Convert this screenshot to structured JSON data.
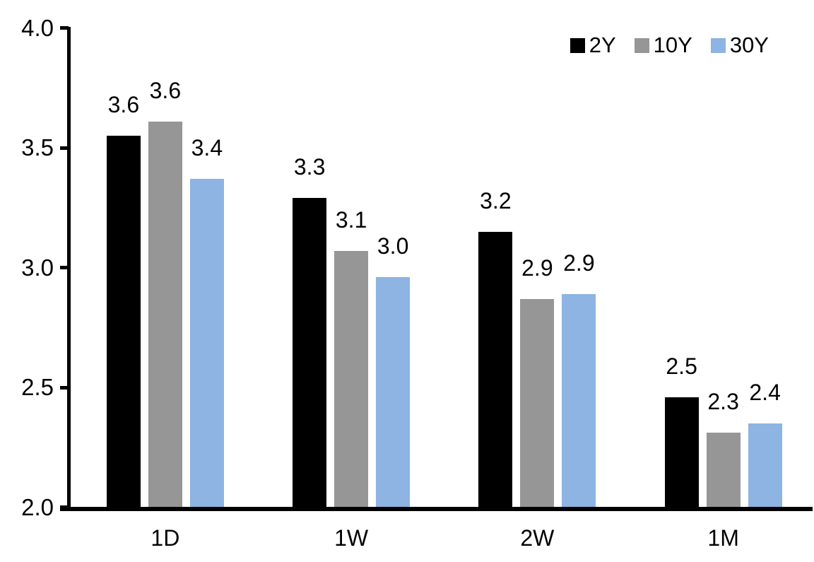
{
  "chart_data": {
    "type": "bar",
    "title": "",
    "xlabel": "",
    "ylabel": "",
    "categories": [
      "1D",
      "1W",
      "2W",
      "1M"
    ],
    "series": [
      {
        "name": "2Y",
        "color": "#000000",
        "values": [
          3.55,
          3.29,
          3.15,
          2.46
        ],
        "data_labels": [
          "3.6",
          "3.3",
          "3.2",
          "2.5"
        ]
      },
      {
        "name": "10Y",
        "color": "#969696",
        "values": [
          3.61,
          3.07,
          2.87,
          2.31
        ],
        "data_labels": [
          "3.6",
          "3.1",
          "2.9",
          "2.3"
        ]
      },
      {
        "name": "30Y",
        "color": "#8DB4E2",
        "values": [
          3.37,
          2.96,
          2.89,
          2.35
        ],
        "data_labels": [
          "3.4",
          "3.0",
          "2.9",
          "2.4"
        ]
      }
    ],
    "ylim": [
      2.0,
      4.0
    ],
    "ytick_values": [
      2.0,
      2.5,
      3.0,
      3.5,
      4.0
    ],
    "ytick_labels": [
      "2.0",
      "2.5",
      "3.0",
      "3.5",
      "4.0"
    ],
    "grid": false,
    "data_labels_shown": true,
    "legend_position": "top-right",
    "axis_color": "#000000",
    "background_color": "#FFFFFF"
  }
}
